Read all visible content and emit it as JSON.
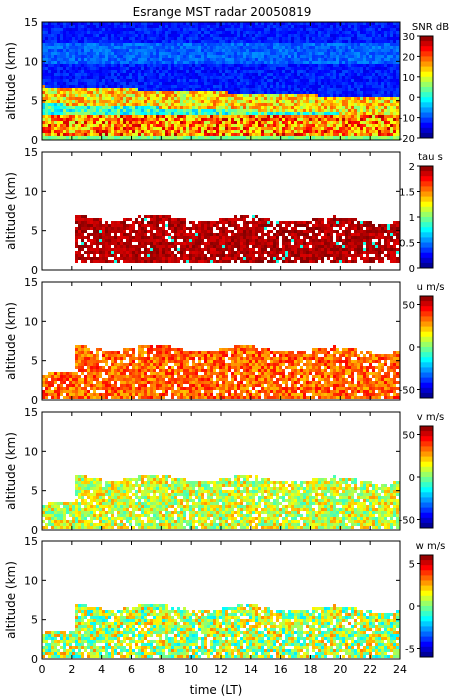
{
  "figure": {
    "title": "Esrange MST radar 20050819",
    "xlabel": "time (LT)",
    "x_ticks": [
      "0",
      "2",
      "4",
      "6",
      "8",
      "10",
      "12",
      "14",
      "16",
      "18",
      "20",
      "22",
      "24"
    ]
  },
  "chart_data": [
    {
      "type": "heatmap",
      "title": "Esrange MST radar 20050819",
      "ylabel": "altitude (km)",
      "xlabel": "",
      "xlim": [
        0,
        24
      ],
      "ylim": [
        0,
        15
      ],
      "y_ticks": [
        "0",
        "5",
        "10",
        "15"
      ],
      "colorbar": {
        "label": "SNR dB",
        "range": [
          -20,
          30
        ],
        "ticks": [
          "30",
          "20",
          "10",
          "0",
          "-10",
          "-20"
        ],
        "colormap": "jet"
      }
    },
    {
      "type": "heatmap",
      "title": "",
      "ylabel": "altitude (km)",
      "xlabel": "",
      "xlim": [
        0,
        24
      ],
      "ylim": [
        0,
        15
      ],
      "y_ticks": [
        "0",
        "5",
        "10",
        "15"
      ],
      "colorbar": {
        "label": "tau s",
        "range": [
          0,
          2
        ],
        "ticks": [
          "2",
          "1.5",
          "1",
          "0.5",
          "0"
        ],
        "colormap": "jet"
      }
    },
    {
      "type": "heatmap",
      "title": "",
      "ylabel": "altitude (km)",
      "xlabel": "",
      "xlim": [
        0,
        24
      ],
      "ylim": [
        0,
        15
      ],
      "y_ticks": [
        "0",
        "5",
        "10",
        "15"
      ],
      "colorbar": {
        "label": "u m/s",
        "range": [
          -60,
          60
        ],
        "ticks": [
          "50",
          "0",
          "-50"
        ],
        "colormap": "jet"
      }
    },
    {
      "type": "heatmap",
      "title": "",
      "ylabel": "altitude (km)",
      "xlabel": "",
      "xlim": [
        0,
        24
      ],
      "ylim": [
        0,
        15
      ],
      "y_ticks": [
        "0",
        "5",
        "10",
        "15"
      ],
      "colorbar": {
        "label": "v m/s",
        "range": [
          -60,
          60
        ],
        "ticks": [
          "50",
          "0",
          "-50"
        ],
        "colormap": "jet"
      }
    },
    {
      "type": "heatmap",
      "title": "",
      "ylabel": "altitude (km)",
      "xlabel": "time (LT)",
      "xlim": [
        0,
        24
      ],
      "ylim": [
        0,
        15
      ],
      "y_ticks": [
        "0",
        "5",
        "10",
        "15"
      ],
      "colorbar": {
        "label": "w m/s",
        "range": [
          -6,
          6
        ],
        "ticks": [
          "5",
          "0",
          "-5"
        ],
        "colormap": "jet"
      }
    }
  ]
}
